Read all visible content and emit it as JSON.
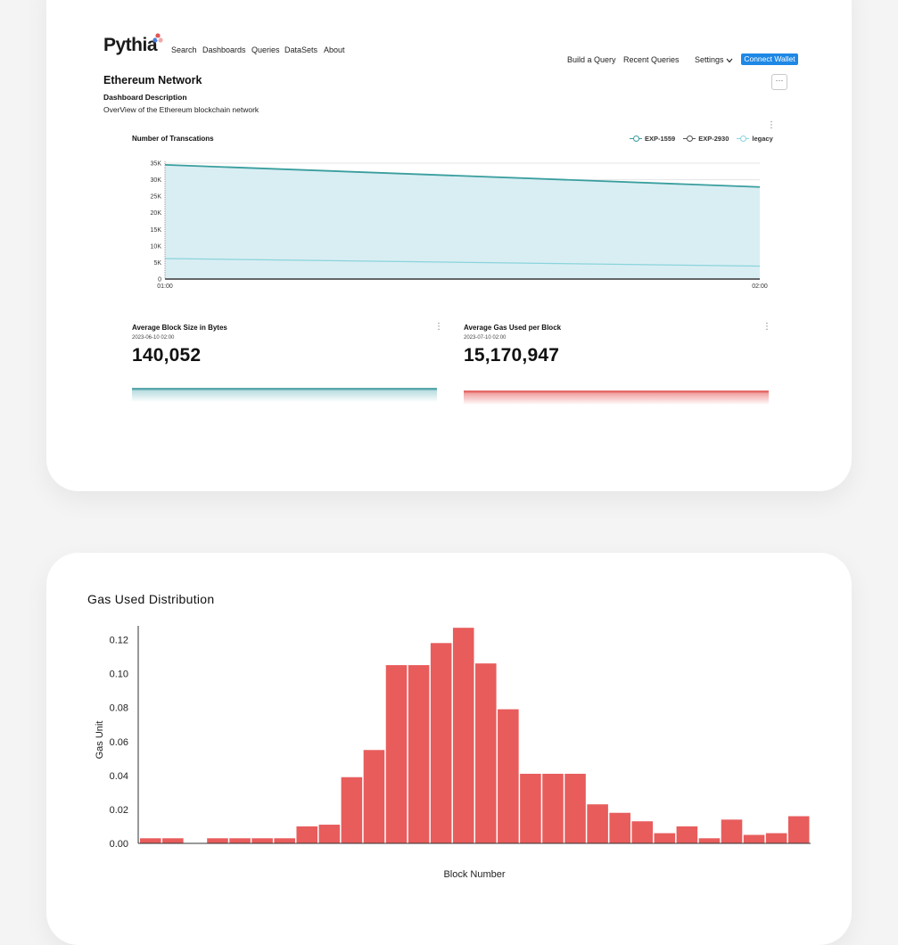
{
  "brand": {
    "name": "Pythia"
  },
  "nav": {
    "items": [
      "Search",
      "Dashboards",
      "Queries",
      "DataSets",
      "About"
    ]
  },
  "topbar": {
    "build_query": "Build a Query",
    "recent_queries": "Recent Queries",
    "settings": "Settings",
    "connect_wallet": "Connect Wallet",
    "more_icon": "more-horizontal-icon"
  },
  "dashboard": {
    "title": "Ethereum Network",
    "description_label": "Dashboard Description",
    "description": "OverView of the Ethereum blockchain network"
  },
  "transactions_chart": {
    "type": "area",
    "title": "Number of Transcations",
    "x": [
      "01:00",
      "02:00"
    ],
    "yticks": [
      "0",
      "5K",
      "10K",
      "15K",
      "20K",
      "25K",
      "30K",
      "35K"
    ],
    "ylim": [
      0,
      35000
    ],
    "legend": [
      "EXP-1559",
      "EXP-2930",
      "legacy"
    ],
    "series": [
      {
        "name": "EXP-1559",
        "values": [
          34500,
          27800
        ],
        "color": "#3a9e9e"
      },
      {
        "name": "EXP-2930",
        "values": [
          0,
          0
        ],
        "color": "#555555"
      },
      {
        "name": "legacy",
        "values": [
          6200,
          3900
        ],
        "color": "#8ad4dc"
      }
    ],
    "fill_color": "#d9eef3"
  },
  "kpis": [
    {
      "title": "Average Block Size in Bytes",
      "date": "2023-06-10 02:00",
      "value": "140,052",
      "color": "#5aa7ac"
    },
    {
      "title": "Average Gas Used per Block",
      "date": "2023-07-10 02:00",
      "value": "15,170,947",
      "color": "#e56a6a"
    }
  ],
  "chart_data": {
    "type": "bar",
    "title": "Gas Used Distribution",
    "xlabel": "Block Number",
    "ylabel": "Gas Unit",
    "ylim": [
      0,
      0.125
    ],
    "yticks": [
      "0.00",
      "0.02",
      "0.04",
      "0.06",
      "0.08",
      "0.10",
      "0.12"
    ],
    "values": [
      0.003,
      0.003,
      0,
      0.003,
      0.003,
      0.003,
      0.003,
      0.01,
      0.011,
      0.039,
      0.055,
      0.105,
      0.105,
      0.118,
      0.127,
      0.106,
      0.079,
      0.041,
      0.041,
      0.041,
      0.023,
      0.018,
      0.013,
      0.006,
      0.01,
      0.003,
      0.014,
      0.005,
      0.006,
      0.016
    ],
    "color": "#e85c5c"
  }
}
